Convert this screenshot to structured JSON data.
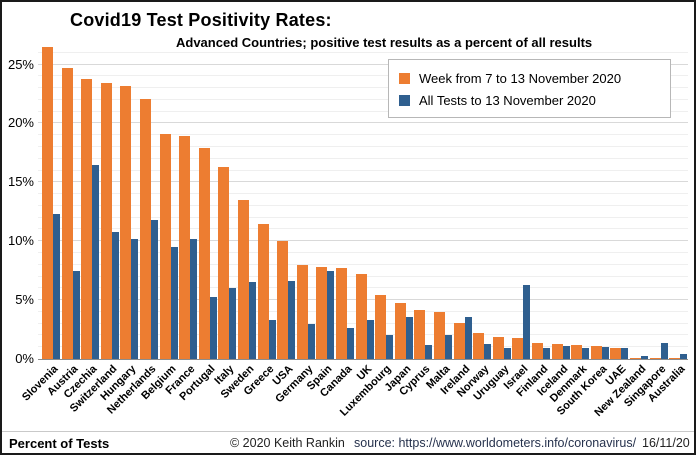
{
  "header": {
    "title": "Covid19 Test Positivity Rates:",
    "subtitle": "Advanced Countries; positive test results as a percent of all results"
  },
  "legend": {
    "items": [
      {
        "label": "Week from 7 to 13 November 2020",
        "color": "#ED7D31"
      },
      {
        "label": "All Tests to 13 November 2020",
        "color": "#2F5F8F"
      }
    ]
  },
  "y_axis": {
    "tick_labels": [
      "0%",
      "5%",
      "10%",
      "15%",
      "20%",
      "25%"
    ],
    "unit": "percent"
  },
  "footer": {
    "axis_note": "Percent of Tests",
    "copyright": "© 2020  Keith Rankin",
    "source": "source:  https://www.worldometers.info/coronavirus/",
    "date": "16/11/20"
  },
  "chart_data": {
    "type": "bar",
    "title": "Covid19 Test Positivity Rates:",
    "subtitle": "Advanced Countries; positive test results as a percent of all results",
    "xlabel": "",
    "ylabel": "Percent of Tests",
    "ylim": [
      0,
      26.6
    ],
    "yticks": [
      0,
      5,
      10,
      15,
      20,
      25
    ],
    "grid": "horizontal minor lines every 1%, major every 5%",
    "legend_position": "top-right",
    "categories": [
      "Slovenia",
      "Austria",
      "Czechia",
      "Switzerland",
      "Hungary",
      "Netherlands",
      "Belgium",
      "France",
      "Portugal",
      "Italy",
      "Sweden",
      "Greece",
      "USA",
      "Germany",
      "Spain",
      "Canada",
      "UK",
      "Luxembourg",
      "Japan",
      "Cyprus",
      "Malta",
      "Ireland",
      "Norway",
      "Uruguay",
      "Israel",
      "Finland",
      "Iceland",
      "Denmark",
      "South Korea",
      "UAE",
      "New Zealand",
      "Singapore",
      "Australia"
    ],
    "series": [
      {
        "name": "Week from 7 to 13 November 2020",
        "color": "#ED7D31",
        "values": [
          26.5,
          24.7,
          23.8,
          23.4,
          23.2,
          22.1,
          19.1,
          18.9,
          17.9,
          16.3,
          13.5,
          11.5,
          10.0,
          8.0,
          7.8,
          7.7,
          7.2,
          5.4,
          4.8,
          4.2,
          4.0,
          3.1,
          2.2,
          1.9,
          1.8,
          1.4,
          1.3,
          1.2,
          1.1,
          0.9,
          0.1,
          0.1,
          0.1
        ]
      },
      {
        "name": "All Tests to 13 November 2020",
        "color": "#2F5F8F",
        "values": [
          12.3,
          7.5,
          16.5,
          10.8,
          10.2,
          11.8,
          9.5,
          10.2,
          5.3,
          6.0,
          6.5,
          3.3,
          6.6,
          3.0,
          7.5,
          2.6,
          3.3,
          2.0,
          3.6,
          1.2,
          2.0,
          3.6,
          1.3,
          0.9,
          6.3,
          0.9,
          1.1,
          0.9,
          1.0,
          0.9,
          0.3,
          1.4,
          0.4
        ]
      }
    ]
  }
}
